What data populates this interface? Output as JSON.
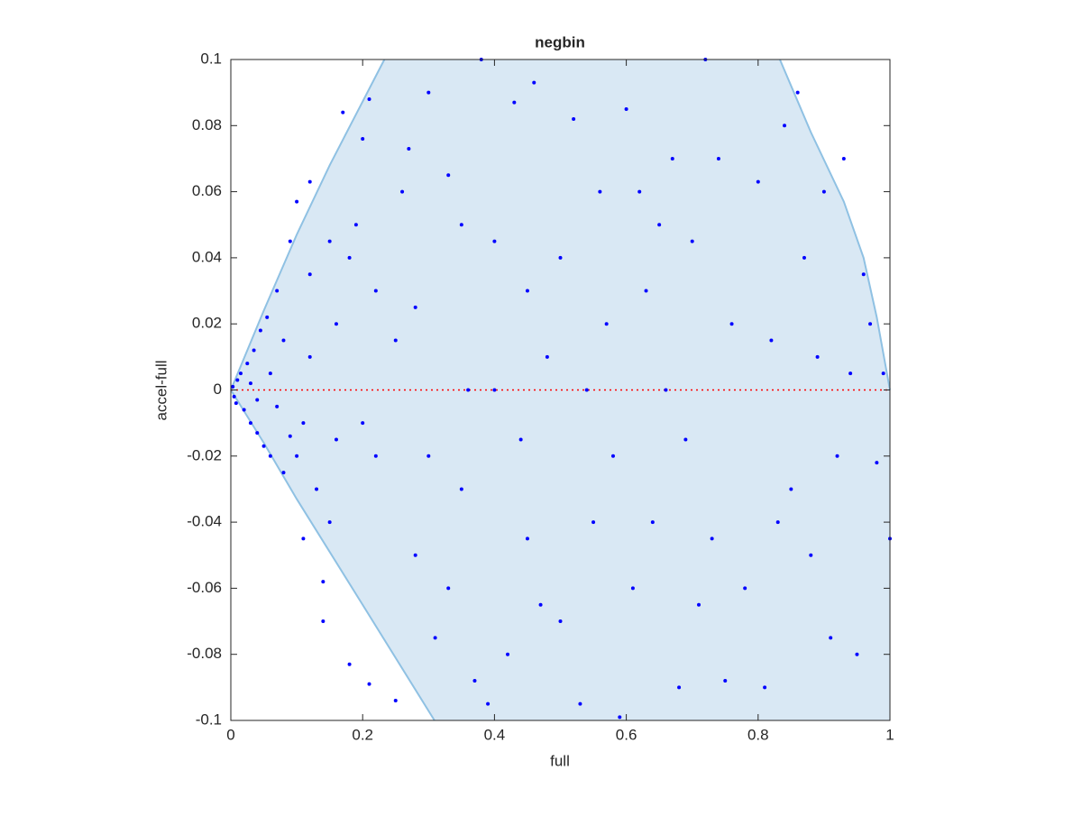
{
  "chart_data": {
    "type": "scatter",
    "title": "negbin",
    "x_label": "full",
    "y_label": "accel-full",
    "xlim": [
      0,
      1
    ],
    "ylim": [
      -0.1,
      0.1
    ],
    "xticks": [
      0,
      0.2,
      0.4,
      0.6,
      0.8,
      1
    ],
    "yticks": [
      -0.1,
      -0.08,
      -0.06,
      -0.04,
      -0.02,
      0,
      0.02,
      0.04,
      0.06,
      0.08,
      0.1
    ],
    "region": {
      "color": "#d9e8f4",
      "edge_color": "#8fc1e3",
      "x": [
        0,
        0.05,
        0.1,
        0.15,
        0.233,
        0.833,
        0.88,
        0.93,
        0.96,
        0.98,
        1,
        1,
        0.309,
        0.2,
        0.1,
        0.05,
        0
      ],
      "y": [
        0,
        0.024,
        0.047,
        0.068,
        0.1,
        0.1,
        0.078,
        0.057,
        0.04,
        0.022,
        0,
        -0.1,
        -0.1,
        -0.065,
        -0.033,
        -0.016,
        0
      ]
    },
    "reference_line": {
      "y": 0,
      "color": "#ff0000"
    },
    "series": [
      {
        "color": "#0000ff",
        "x": [
          0.003,
          0.005,
          0.01,
          0.008,
          0.015,
          0.02,
          0.025,
          0.03,
          0.035,
          0.04,
          0.045,
          0.05,
          0.055,
          0.06,
          0.07,
          0.08,
          0.09,
          0.09,
          0.1,
          0.11,
          0.12,
          0.12,
          0.13,
          0.14,
          0.14,
          0.15,
          0.16,
          0.17,
          0.18,
          0.19,
          0.2,
          0.21,
          0.21,
          0.22,
          0.25,
          0.26,
          0.27,
          0.28,
          0.3,
          0.31,
          0.33,
          0.35,
          0.36,
          0.37,
          0.38,
          0.39,
          0.4,
          0.42,
          0.43,
          0.45,
          0.46,
          0.47,
          0.48,
          0.5,
          0.52,
          0.53,
          0.54,
          0.55,
          0.56,
          0.57,
          0.59,
          0.6,
          0.61,
          0.62,
          0.63,
          0.64,
          0.66,
          0.67,
          0.68,
          0.7,
          0.71,
          0.72,
          0.73,
          0.74,
          0.75,
          0.76,
          0.78,
          0.8,
          0.81,
          0.82,
          0.83,
          0.84,
          0.85,
          0.86,
          0.87,
          0.88,
          0.89,
          0.9,
          0.91,
          0.92,
          0.93,
          0.94,
          0.95,
          0.96,
          0.97,
          0.98,
          0.99,
          1,
          0.1,
          0.15,
          0.2,
          0.25,
          0.3,
          0.35,
          0.4,
          0.45,
          0.12,
          0.18,
          0.06,
          0.07,
          0.03,
          0.04,
          0.08,
          0.11,
          0.16,
          0.22,
          0.28,
          0.33,
          0.44,
          0.5,
          0.58,
          0.65,
          0.69
        ],
        "y": [
          0.001,
          -0.002,
          0.003,
          -0.004,
          0.005,
          -0.006,
          0.008,
          -0.01,
          0.012,
          -0.013,
          0.018,
          -0.017,
          0.022,
          -0.02,
          0.03,
          -0.025,
          -0.014,
          0.045,
          0.057,
          -0.045,
          0.063,
          0.035,
          -0.03,
          -0.058,
          -0.07,
          0.045,
          0.02,
          0.084,
          -0.083,
          0.05,
          0.076,
          -0.089,
          0.088,
          0.03,
          -0.094,
          0.06,
          0.073,
          -0.05,
          0.09,
          -0.075,
          0.065,
          0.05,
          0,
          -0.088,
          0.1,
          -0.095,
          0.045,
          -0.08,
          0.087,
          0.03,
          0.093,
          -0.065,
          0.01,
          -0.07,
          0.082,
          -0.095,
          0,
          -0.04,
          0.06,
          0.02,
          -0.099,
          0.085,
          -0.06,
          0.06,
          0.03,
          -0.04,
          0,
          0.07,
          -0.09,
          0.045,
          -0.065,
          0.1,
          -0.045,
          0.07,
          -0.088,
          0.02,
          -0.06,
          0.063,
          -0.09,
          0.015,
          -0.04,
          0.08,
          -0.03,
          0.09,
          0.04,
          -0.05,
          0.01,
          0.06,
          -0.075,
          -0.02,
          0.07,
          0.005,
          -0.08,
          0.035,
          0.02,
          -0.022,
          0.005,
          -0.045,
          -0.02,
          -0.04,
          -0.01,
          0.015,
          -0.02,
          -0.03,
          0,
          -0.045,
          0.01,
          0.04,
          0.005,
          -0.005,
          0.002,
          -0.003,
          0.015,
          -0.01,
          -0.015,
          -0.02,
          0.025,
          -0.06,
          -0.015,
          0.04,
          -0.02,
          0.05,
          -0.015
        ]
      }
    ]
  }
}
